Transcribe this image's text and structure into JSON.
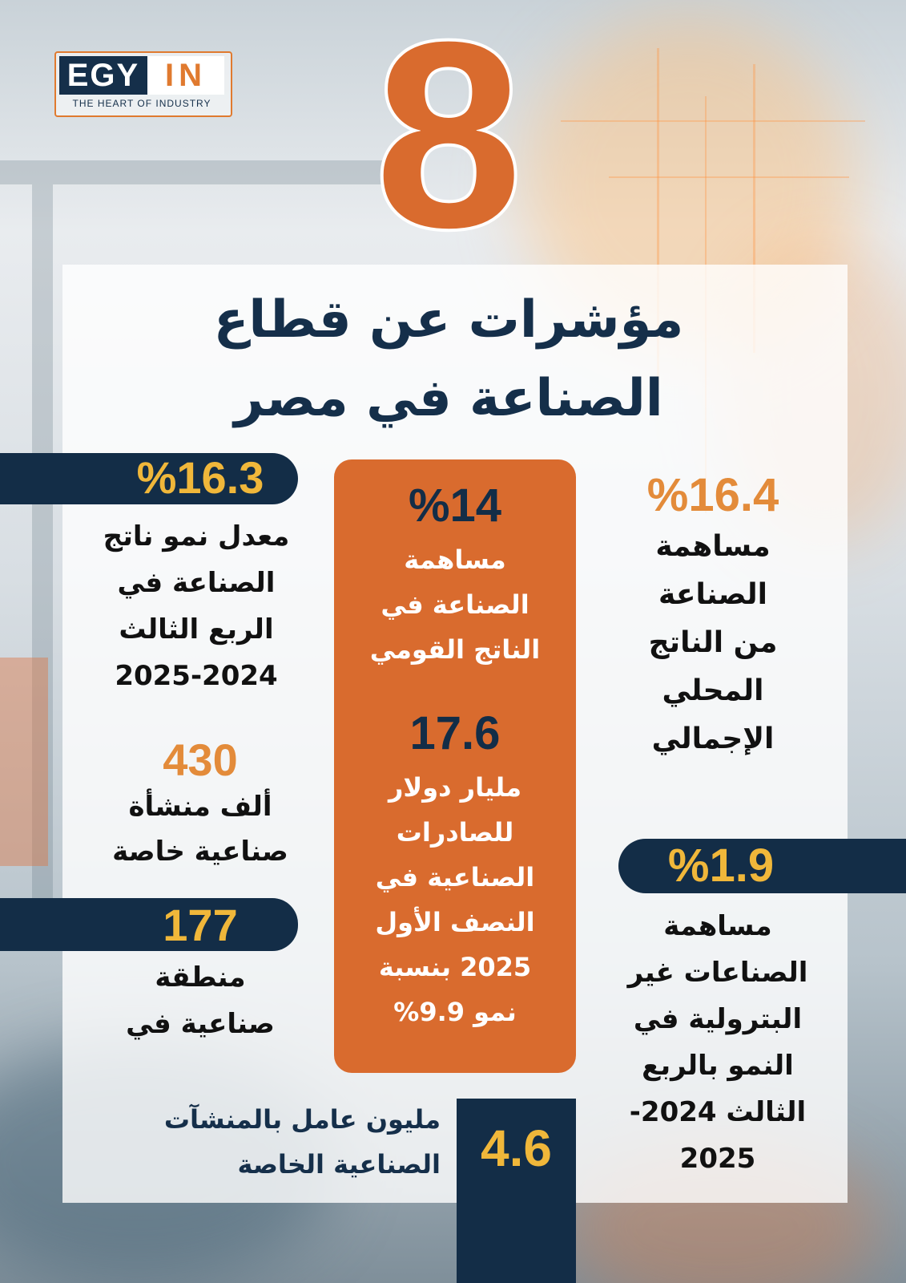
{
  "brand": {
    "logo_left": "EGY",
    "logo_right": "IN",
    "tagline": "THE HEART OF INDUSTRY",
    "accent_color": "#d96b2e",
    "navy_color": "#132d47",
    "gold_color": "#f0b73a"
  },
  "header": {
    "big_number": "8",
    "title_line1": "مؤشرات عن قطاع",
    "title_line2": "الصناعة في مصر"
  },
  "indicators": {
    "q3_growth": {
      "value": "%16.3",
      "lines": [
        "معدل نمو ناتج",
        "الصناعة في",
        "الربع الثالث",
        "2025-2024"
      ]
    },
    "private_facilities": {
      "value": "430",
      "lines": [
        "ألف منشأة",
        "صناعية خاصة"
      ]
    },
    "industrial_zones": {
      "value": "177",
      "lines": [
        "منطقة",
        "صناعية في"
      ]
    },
    "gnp_share": {
      "value": "%14",
      "lines": [
        "مساهمة",
        "الصناعة في",
        "الناتج القومي"
      ]
    },
    "exports": {
      "value": "17.6",
      "lines": [
        "مليار دولار",
        "للصادرات",
        "الصناعية في",
        "النصف الأول",
        "2025 بنسبة",
        "نمو 9.9%"
      ]
    },
    "gdp_share": {
      "value": "%16.4",
      "lines": [
        "مساهمة",
        "الصناعة",
        "من الناتج",
        "المحلي",
        "الإجمالي"
      ]
    },
    "non_petroleum": {
      "value": "%1.9",
      "lines": [
        "مساهمة",
        "الصناعات غير",
        "البترولية في",
        "النمو بالربع",
        "الثالث 2024-",
        "2025"
      ]
    },
    "workers": {
      "value": "4.6",
      "lines": [
        "مليون عامل بالمنشآت",
        "الصناعية الخاصة"
      ]
    }
  }
}
